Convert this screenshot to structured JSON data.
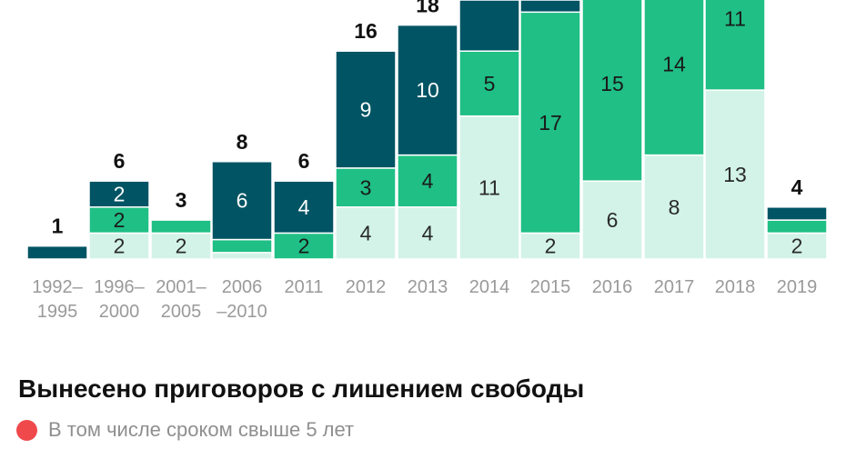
{
  "chart_data": {
    "type": "bar",
    "stacked": true,
    "categories": [
      "1992–\n1995",
      "1996–\n2000",
      "2001–\n2005",
      "2006\n–2010",
      "2011",
      "2012",
      "2013",
      "2014",
      "2015",
      "2016",
      "2017",
      "2018",
      "2019"
    ],
    "series": [
      {
        "color": "#d3f3e8",
        "text_color": "#2a2a2a",
        "values": [
          0,
          2,
          2,
          0.5,
          0,
          4,
          4,
          11,
          2,
          6,
          8,
          13,
          2
        ]
      },
      {
        "color": "#1fbf85",
        "text_color": "#1a1a1a",
        "values": [
          0,
          2,
          1,
          1,
          2,
          3,
          4,
          5,
          17,
          15,
          14,
          11,
          1
        ]
      },
      {
        "color": "#005464",
        "text_color": "#ffffff",
        "values": [
          1,
          2,
          0,
          6,
          4,
          9,
          10,
          null,
          null,
          null,
          null,
          null,
          1
        ]
      }
    ],
    "segment_labels": [
      [
        "",
        "2",
        "2",
        "",
        "",
        "4",
        "4",
        "11",
        "2",
        "6",
        "8",
        "13",
        "2"
      ],
      [
        "",
        "2",
        "",
        "",
        "2",
        "3",
        "4",
        "5",
        "17",
        "15",
        "14",
        "11",
        ""
      ],
      [
        "",
        "2",
        "",
        "6",
        "4",
        "9",
        "10",
        "",
        "",
        "",
        "",
        "",
        ""
      ]
    ],
    "totals": [
      "1",
      "6",
      "3",
      "8",
      "6",
      "16",
      "18",
      "",
      "",
      "",
      "",
      "",
      "4"
    ],
    "legend": {
      "title": "Вынесено приговоров с лишением свободы",
      "items": [
        {
          "label": "В том числе сроком свыше 5 лет",
          "color": "#f0494c"
        }
      ]
    }
  }
}
